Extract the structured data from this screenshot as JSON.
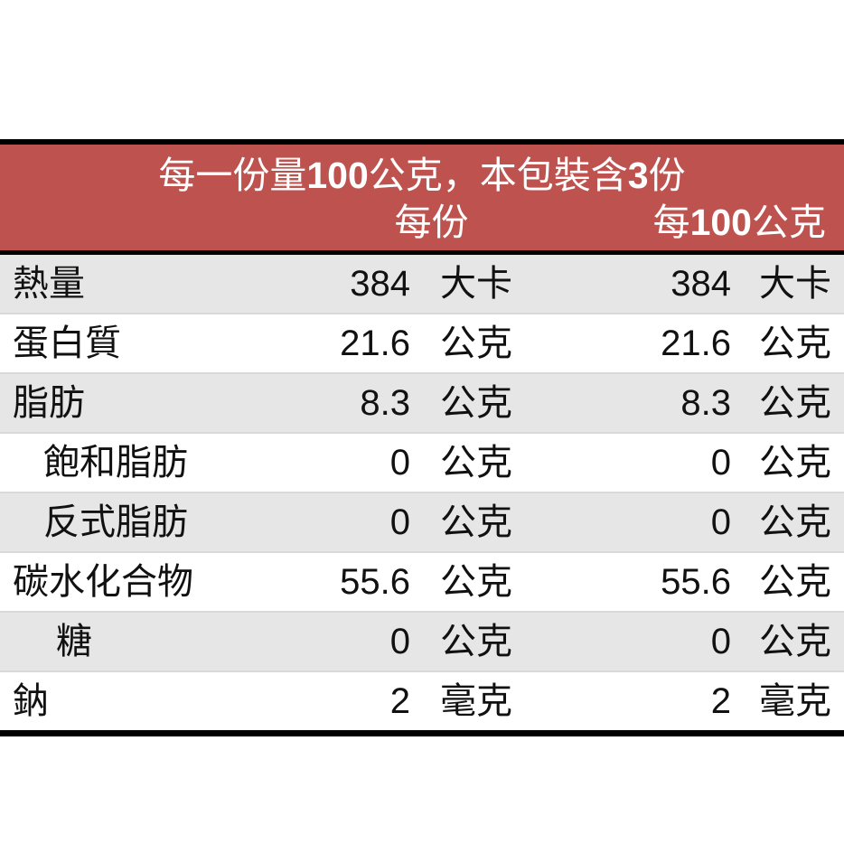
{
  "nutrition_label": {
    "colors": {
      "header_bg": "#bd524e",
      "header_text": "#ffffff",
      "band_row_bg": "#e6e6e6",
      "rule_color": "#000000",
      "row_divider": "#d9d9d9",
      "text": "#111111"
    },
    "header": {
      "serving_info_segments": [
        {
          "t": "每一份量"
        },
        {
          "t": "100",
          "b": true
        },
        {
          "t": "公克，本包裝含"
        },
        {
          "t": "3",
          "b": true
        },
        {
          "t": "份"
        }
      ],
      "per_serving_label": "每份",
      "per_100g_segments": [
        {
          "t": "每"
        },
        {
          "t": "100",
          "b": true
        },
        {
          "t": "公克"
        }
      ]
    },
    "rows": [
      {
        "nutrient": "熱量",
        "per_serving": "384",
        "per_serving_unit": "大卡",
        "per_100g": "384",
        "per_100g_unit": "大卡"
      },
      {
        "nutrient": "蛋白質",
        "per_serving": "21.6",
        "per_serving_unit": "公克",
        "per_100g": "21.6",
        "per_100g_unit": "公克"
      },
      {
        "nutrient": "脂肪",
        "per_serving": "8.3",
        "per_serving_unit": "公克",
        "per_100g": "8.3",
        "per_100g_unit": "公克"
      },
      {
        "nutrient": "飽和脂肪",
        "per_serving": "0",
        "per_serving_unit": "公克",
        "per_100g": "0",
        "per_100g_unit": "公克"
      },
      {
        "nutrient": "反式脂肪",
        "per_serving": "0",
        "per_serving_unit": "公克",
        "per_100g": "0",
        "per_100g_unit": "公克"
      },
      {
        "nutrient": "碳水化合物",
        "per_serving": "55.6",
        "per_serving_unit": "公克",
        "per_100g": "55.6",
        "per_100g_unit": "公克"
      },
      {
        "nutrient": "糖",
        "per_serving": "0",
        "per_serving_unit": "公克",
        "per_100g": "0",
        "per_100g_unit": "公克"
      },
      {
        "nutrient": "鈉",
        "per_serving": "2",
        "per_serving_unit": "毫克",
        "per_100g": "2",
        "per_100g_unit": "毫克"
      }
    ]
  }
}
